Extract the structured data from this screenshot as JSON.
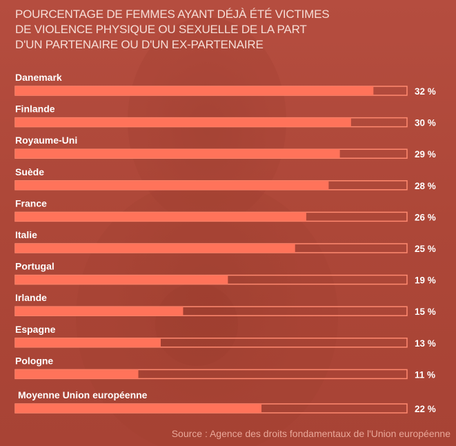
{
  "title_lines": [
    "POURCENTAGE DE FEMMES AYANT DÉJÀ ÉTÉ VICTIMES",
    "DE VIOLENCE PHYSIQUE OU SEXUELLE DE LA PART",
    "D'UN PARTENAIRE OU D'UN EX-PARTENAIRE"
  ],
  "source": "Source : Agence des droits fondamentaux de l'Union européenne",
  "colors": {
    "background": "#b24a3c",
    "bar_fill": "#ff735a",
    "bar_outline": "#ff8a70",
    "label_text": "#ffffff"
  },
  "chart_data": {
    "type": "bar",
    "orientation": "horizontal",
    "categories": [
      "Danemark",
      "Finlande",
      "Royaume-Uni",
      "Suède",
      "France",
      "Italie",
      "Portugal",
      "Irlande",
      "Espagne",
      "Pologne",
      "Moyenne Union européenne"
    ],
    "values": [
      32,
      30,
      29,
      28,
      26,
      25,
      19,
      15,
      13,
      11,
      22
    ],
    "value_labels": [
      "32 %",
      "30 %",
      "29 %",
      "28 %",
      "26 %",
      "25 %",
      "19 %",
      "15 %",
      "13 %",
      "11 %",
      "22 %"
    ],
    "unit": "%",
    "xlim": [
      0,
      35
    ],
    "grid": false,
    "legend": "none"
  }
}
